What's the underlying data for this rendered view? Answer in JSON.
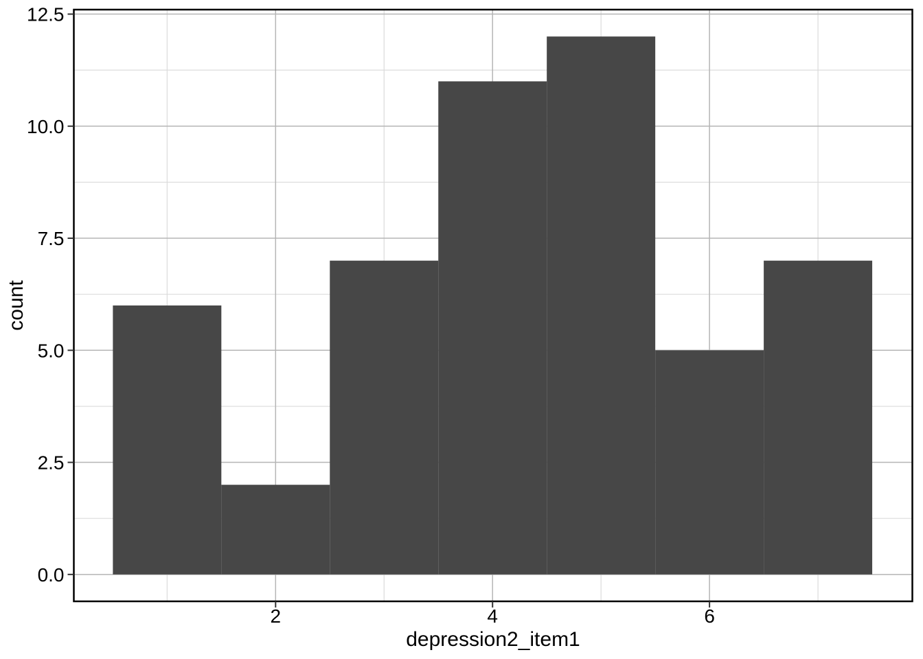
{
  "figure": {
    "background": "#FFFFFF"
  },
  "chart_data": {
    "type": "bar",
    "subtype": "histogram",
    "title": "",
    "xlabel": "depression2_item1",
    "ylabel": "count",
    "bins": {
      "start": 0.5,
      "width": 1,
      "counts": [
        6,
        2,
        7,
        11,
        12,
        5,
        7
      ]
    },
    "x_major_ticks": [
      2,
      4,
      6
    ],
    "x_tick_labels": [
      "2",
      "4",
      "6"
    ],
    "x_minor_gridlines": [
      1,
      3,
      5,
      7
    ],
    "y_major_ticks": [
      0,
      2.5,
      5,
      7.5,
      10,
      12.5
    ],
    "y_tick_labels": [
      "0.0",
      "2.5",
      "5.0",
      "7.5",
      "10.0",
      "12.5"
    ],
    "y_minor_gridlines": [
      1.25,
      3.75,
      6.25,
      8.75,
      11.25
    ],
    "xlim": [
      0.14,
      7.87
    ],
    "ylim": [
      -0.6,
      12.6
    ],
    "grid": true,
    "legend": "none",
    "colors": {
      "bar_fill": "#474747",
      "panel_border": "#000000",
      "grid_major": "#B5B5B5",
      "grid_minor": "#DBDBDB",
      "tick_mark": "#333333",
      "text": "#000000",
      "background": "#FFFFFF"
    }
  }
}
